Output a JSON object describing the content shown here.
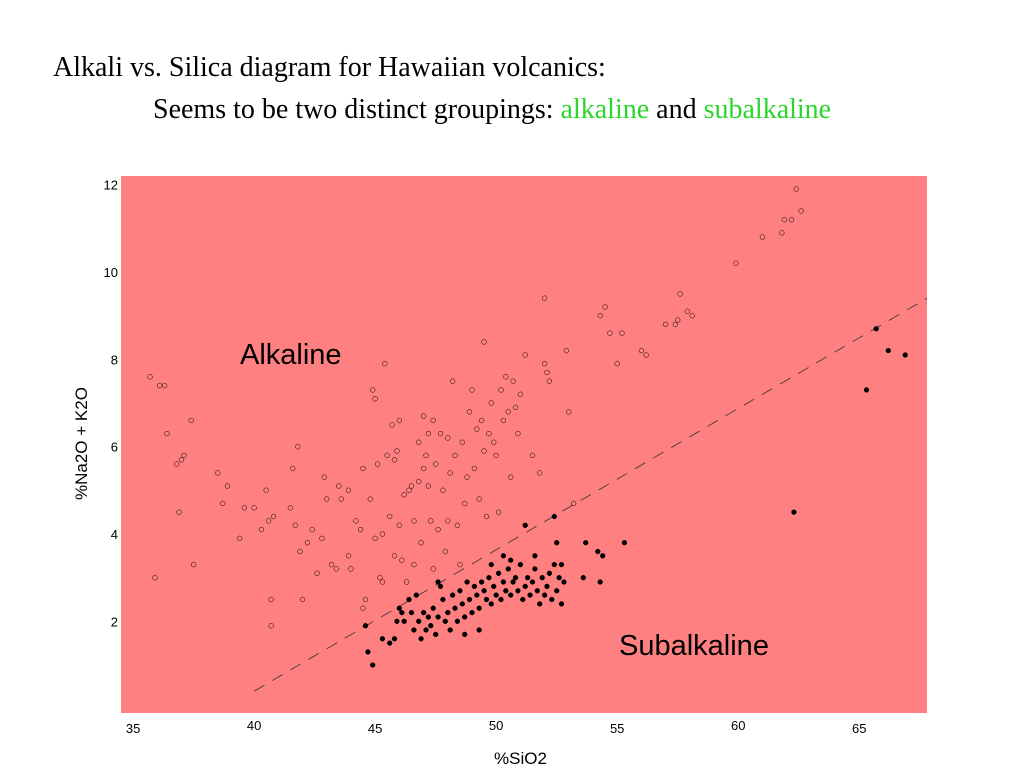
{
  "title": {
    "line1": "Alkali vs. Silica diagram for Hawaiian volcanics:",
    "line2_prefix": "Seems to be two distinct groupings: ",
    "line2_alkaline": "alkaline",
    "line2_and": " and ",
    "line2_subalkaline": "subalkaline"
  },
  "colors": {
    "plot_background": "#ff8080",
    "highlight_text": "#2bd62b",
    "points": "#000000"
  },
  "chart_data": {
    "type": "scatter",
    "xlabel": "%SiO2",
    "ylabel": "%Na2O + K2O",
    "xlim": [
      34.5,
      67.8
    ],
    "ylim": [
      -0.1,
      12.2
    ],
    "x_ticks": [
      "35",
      "40",
      "45",
      "50",
      "55",
      "60",
      "65"
    ],
    "y_ticks": [
      "2",
      "4",
      "6",
      "8",
      "10",
      "12"
    ],
    "grid": false,
    "legend": "none",
    "annotations": [
      "Alkaline",
      "Subalkaline"
    ],
    "divider_line": {
      "style": "dashed",
      "x": [
        40,
        67.8
      ],
      "y": [
        0.4,
        9.4
      ]
    },
    "series": [
      {
        "marker": "open-circle",
        "points": [
          [
            35.7,
            7.6
          ],
          [
            36.1,
            7.4
          ],
          [
            36.3,
            7.4
          ],
          [
            36.4,
            6.3
          ],
          [
            36.9,
            4.5
          ],
          [
            36.8,
            5.6
          ],
          [
            37.0,
            5.7
          ],
          [
            37.1,
            5.8
          ],
          [
            37.4,
            6.6
          ],
          [
            37.5,
            3.3
          ],
          [
            35.9,
            3.0
          ],
          [
            38.5,
            5.4
          ],
          [
            38.7,
            4.7
          ],
          [
            38.9,
            5.1
          ],
          [
            39.4,
            3.9
          ],
          [
            39.6,
            4.6
          ],
          [
            40.0,
            4.6
          ],
          [
            40.3,
            4.1
          ],
          [
            40.5,
            5.0
          ],
          [
            40.6,
            4.3
          ],
          [
            40.7,
            2.5
          ],
          [
            40.8,
            4.4
          ],
          [
            40.7,
            1.9
          ],
          [
            41.5,
            4.6
          ],
          [
            41.6,
            5.5
          ],
          [
            41.8,
            6.0
          ],
          [
            41.7,
            4.2
          ],
          [
            41.9,
            3.6
          ],
          [
            42.0,
            2.5
          ],
          [
            42.2,
            3.8
          ],
          [
            42.4,
            4.1
          ],
          [
            42.6,
            3.1
          ],
          [
            42.8,
            3.9
          ],
          [
            42.9,
            5.3
          ],
          [
            43.0,
            4.8
          ],
          [
            43.2,
            3.3
          ],
          [
            43.4,
            3.2
          ],
          [
            43.5,
            5.1
          ],
          [
            43.6,
            4.8
          ],
          [
            43.9,
            5.0
          ],
          [
            43.9,
            3.5
          ],
          [
            44.0,
            3.2
          ],
          [
            44.2,
            4.3
          ],
          [
            44.4,
            4.1
          ],
          [
            44.5,
            5.5
          ],
          [
            44.5,
            2.3
          ],
          [
            44.6,
            2.5
          ],
          [
            44.8,
            4.8
          ],
          [
            44.9,
            7.3
          ],
          [
            45.0,
            7.1
          ],
          [
            45.0,
            3.9
          ],
          [
            45.1,
            5.6
          ],
          [
            45.2,
            3.0
          ],
          [
            45.3,
            2.9
          ],
          [
            45.3,
            4.0
          ],
          [
            45.4,
            7.9
          ],
          [
            45.5,
            5.8
          ],
          [
            45.6,
            4.4
          ],
          [
            45.7,
            6.5
          ],
          [
            45.8,
            3.5
          ],
          [
            45.8,
            5.7
          ],
          [
            45.9,
            5.9
          ],
          [
            46.0,
            6.6
          ],
          [
            46.0,
            4.2
          ],
          [
            46.1,
            3.4
          ],
          [
            46.2,
            4.9
          ],
          [
            46.3,
            2.9
          ],
          [
            46.4,
            5.0
          ],
          [
            46.5,
            5.1
          ],
          [
            46.6,
            3.3
          ],
          [
            46.6,
            4.3
          ],
          [
            46.8,
            6.1
          ],
          [
            46.8,
            5.2
          ],
          [
            46.9,
            3.8
          ],
          [
            47.0,
            6.7
          ],
          [
            47.0,
            5.5
          ],
          [
            47.1,
            5.8
          ],
          [
            47.2,
            6.3
          ],
          [
            47.2,
            5.1
          ],
          [
            47.3,
            4.3
          ],
          [
            47.4,
            6.6
          ],
          [
            47.4,
            3.2
          ],
          [
            47.5,
            5.6
          ],
          [
            47.6,
            4.1
          ],
          [
            47.7,
            6.3
          ],
          [
            47.8,
            5.0
          ],
          [
            47.9,
            3.6
          ],
          [
            48.0,
            6.2
          ],
          [
            48.0,
            4.3
          ],
          [
            48.1,
            5.4
          ],
          [
            48.2,
            7.5
          ],
          [
            48.3,
            5.8
          ],
          [
            48.4,
            4.2
          ],
          [
            48.5,
            3.3
          ],
          [
            48.6,
            6.1
          ],
          [
            48.7,
            4.7
          ],
          [
            48.8,
            5.3
          ],
          [
            48.9,
            6.8
          ],
          [
            49.0,
            7.3
          ],
          [
            49.1,
            5.5
          ],
          [
            49.2,
            6.4
          ],
          [
            49.3,
            4.8
          ],
          [
            49.4,
            6.6
          ],
          [
            49.5,
            8.4
          ],
          [
            49.5,
            5.9
          ],
          [
            49.6,
            4.4
          ],
          [
            49.7,
            6.3
          ],
          [
            49.8,
            7.0
          ],
          [
            49.9,
            6.1
          ],
          [
            50.0,
            5.8
          ],
          [
            50.1,
            4.5
          ],
          [
            50.2,
            7.3
          ],
          [
            50.3,
            6.6
          ],
          [
            50.4,
            7.6
          ],
          [
            50.5,
            6.8
          ],
          [
            50.6,
            5.3
          ],
          [
            50.7,
            7.5
          ],
          [
            50.8,
            6.9
          ],
          [
            50.9,
            6.3
          ],
          [
            51.0,
            7.2
          ],
          [
            51.2,
            8.1
          ],
          [
            51.5,
            5.8
          ],
          [
            51.8,
            5.4
          ],
          [
            52.0,
            9.4
          ],
          [
            52.0,
            7.9
          ],
          [
            52.1,
            7.7
          ],
          [
            52.2,
            7.5
          ],
          [
            52.9,
            8.2
          ],
          [
            53.0,
            6.8
          ],
          [
            53.2,
            4.7
          ],
          [
            54.3,
            9.0
          ],
          [
            54.5,
            9.2
          ],
          [
            54.7,
            8.6
          ],
          [
            55.0,
            7.9
          ],
          [
            55.2,
            8.6
          ],
          [
            56.0,
            8.2
          ],
          [
            56.2,
            8.1
          ],
          [
            57.0,
            8.8
          ],
          [
            57.4,
            8.8
          ],
          [
            57.5,
            8.9
          ],
          [
            57.6,
            9.5
          ],
          [
            57.9,
            9.1
          ],
          [
            58.1,
            9.0
          ],
          [
            59.9,
            10.2
          ],
          [
            61.0,
            10.8
          ],
          [
            61.8,
            10.9
          ],
          [
            61.9,
            11.2
          ],
          [
            62.2,
            11.2
          ],
          [
            62.4,
            11.9
          ],
          [
            62.6,
            11.4
          ]
        ]
      },
      {
        "marker": "filled-circle",
        "points": [
          [
            44.6,
            1.9
          ],
          [
            44.7,
            1.3
          ],
          [
            44.9,
            1.0
          ],
          [
            45.3,
            1.6
          ],
          [
            45.6,
            1.5
          ],
          [
            45.8,
            1.6
          ],
          [
            45.9,
            2.0
          ],
          [
            46.0,
            2.3
          ],
          [
            46.1,
            2.2
          ],
          [
            46.2,
            2.0
          ],
          [
            46.4,
            2.5
          ],
          [
            46.5,
            2.2
          ],
          [
            46.6,
            1.8
          ],
          [
            46.7,
            2.6
          ],
          [
            46.8,
            2.0
          ],
          [
            46.9,
            1.6
          ],
          [
            47.0,
            2.2
          ],
          [
            47.1,
            1.8
          ],
          [
            47.2,
            2.1
          ],
          [
            47.3,
            1.9
          ],
          [
            47.4,
            2.3
          ],
          [
            47.5,
            1.7
          ],
          [
            47.6,
            2.1
          ],
          [
            47.7,
            2.8
          ],
          [
            47.8,
            2.5
          ],
          [
            47.9,
            2.0
          ],
          [
            48.0,
            2.2
          ],
          [
            48.1,
            1.8
          ],
          [
            48.2,
            2.6
          ],
          [
            48.3,
            2.3
          ],
          [
            48.4,
            2.0
          ],
          [
            48.5,
            2.7
          ],
          [
            48.6,
            2.4
          ],
          [
            48.7,
            2.1
          ],
          [
            48.8,
            2.9
          ],
          [
            48.9,
            2.5
          ],
          [
            49.0,
            2.2
          ],
          [
            49.1,
            2.8
          ],
          [
            49.2,
            2.6
          ],
          [
            49.3,
            2.3
          ],
          [
            49.4,
            2.9
          ],
          [
            49.5,
            2.7
          ],
          [
            49.6,
            2.5
          ],
          [
            49.7,
            3.0
          ],
          [
            49.8,
            2.4
          ],
          [
            49.9,
            2.8
          ],
          [
            50.0,
            2.6
          ],
          [
            50.1,
            3.1
          ],
          [
            50.2,
            2.5
          ],
          [
            50.3,
            2.9
          ],
          [
            50.4,
            2.7
          ],
          [
            50.5,
            3.2
          ],
          [
            50.6,
            2.6
          ],
          [
            50.7,
            2.9
          ],
          [
            50.8,
            3.0
          ],
          [
            50.9,
            2.7
          ],
          [
            51.0,
            3.3
          ],
          [
            51.1,
            2.5
          ],
          [
            51.2,
            2.8
          ],
          [
            51.3,
            3.0
          ],
          [
            51.4,
            2.6
          ],
          [
            51.5,
            2.9
          ],
          [
            51.6,
            3.2
          ],
          [
            51.7,
            2.7
          ],
          [
            51.8,
            2.4
          ],
          [
            51.9,
            3.0
          ],
          [
            52.0,
            2.6
          ],
          [
            52.1,
            2.8
          ],
          [
            52.2,
            3.1
          ],
          [
            52.3,
            2.5
          ],
          [
            52.4,
            3.3
          ],
          [
            52.5,
            2.7
          ],
          [
            52.6,
            3.0
          ],
          [
            52.7,
            2.4
          ],
          [
            52.8,
            2.9
          ],
          [
            51.2,
            4.2
          ],
          [
            52.4,
            4.4
          ],
          [
            52.5,
            3.8
          ],
          [
            52.7,
            3.3
          ],
          [
            53.7,
            3.8
          ],
          [
            54.2,
            3.6
          ],
          [
            54.4,
            3.5
          ],
          [
            55.3,
            3.8
          ],
          [
            54.3,
            2.9
          ],
          [
            53.6,
            3.0
          ],
          [
            49.8,
            3.3
          ],
          [
            50.3,
            3.5
          ],
          [
            50.6,
            3.4
          ],
          [
            51.6,
            3.5
          ],
          [
            48.7,
            1.7
          ],
          [
            49.3,
            1.8
          ],
          [
            47.6,
            2.9
          ],
          [
            62.3,
            4.5
          ],
          [
            65.3,
            7.3
          ],
          [
            65.7,
            8.7
          ],
          [
            66.2,
            8.2
          ],
          [
            66.9,
            8.1
          ]
        ]
      }
    ]
  }
}
